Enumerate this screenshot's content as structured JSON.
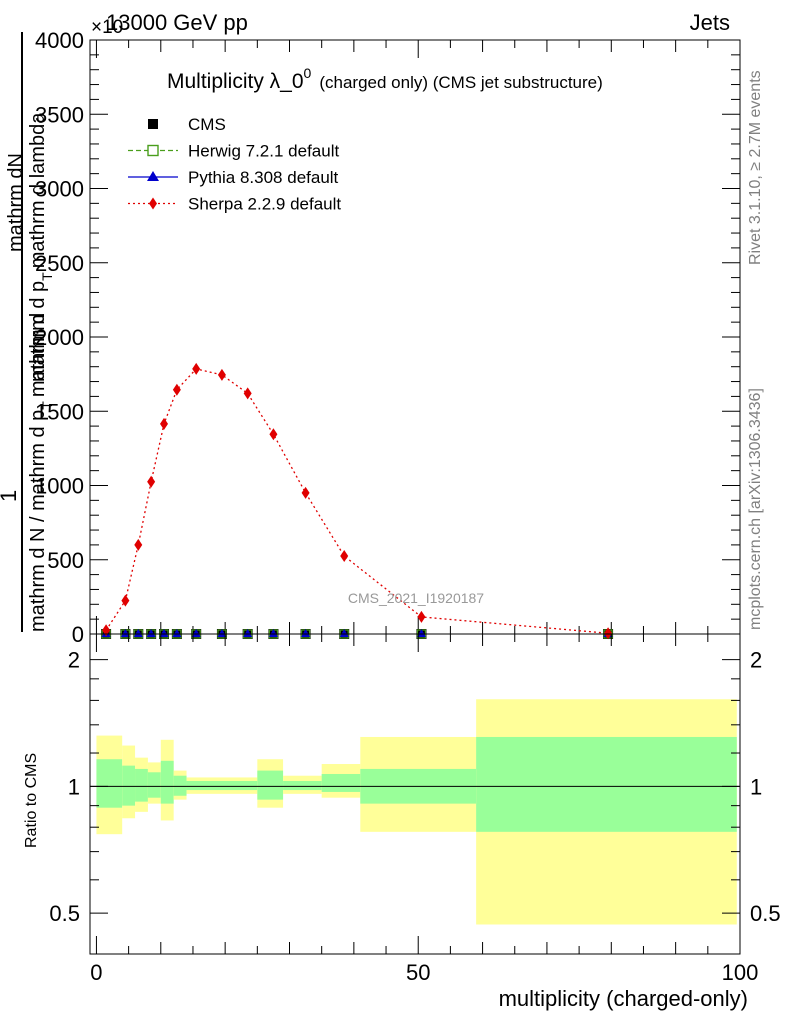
{
  "header": {
    "left": "13000 GeV pp",
    "right": "Jets",
    "multiplier": "×10"
  },
  "side_text": {
    "rivet": "Rivet 3.1.10, ≥ 2.7M events",
    "mcplots": "mcplots.cern.ch [arXiv:1306.3436]"
  },
  "watermark": "CMS_2021_I1920187",
  "chart_data": [
    {
      "type": "line",
      "title_main": "Multiplicity λ_0",
      "title_sup": "0",
      "title_suffix": "(charged only) (CMS jet substructure)",
      "ylabel_num": "1",
      "ylabel_mid": "mathrm d N / mathrm d p",
      "ylabel_sub1": "T",
      "ylabel_tail": "mathrm d",
      "ylabel_den": "mathrm dN",
      "ylabel_den2": "mathrm d p",
      "ylabel_sub2": "T",
      "ylabel_den3": "mathrm d lambda",
      "xlim": [
        -1,
        100
      ],
      "ylim": [
        0,
        4000
      ],
      "yticks": [
        0,
        500,
        1000,
        1500,
        2000,
        2500,
        3000,
        3500,
        4000
      ],
      "ytick_labels": [
        "0",
        "500",
        "1000",
        "1500",
        "2000",
        "2500",
        "3000",
        "3500",
        "4000"
      ],
      "legend": [
        {
          "name": "CMS",
          "color": "#000000",
          "marker": "square-filled",
          "line": "none"
        },
        {
          "name": "Herwig 7.2.1 default",
          "color": "#4a9e1c",
          "marker": "square-open",
          "line": "dashed"
        },
        {
          "name": "Pythia 8.308 default",
          "color": "#0000cc",
          "marker": "triangle",
          "line": "solid"
        },
        {
          "name": "Sherpa 2.2.9 default",
          "color": "#e00000",
          "marker": "diamond",
          "line": "dotted"
        }
      ],
      "series": [
        {
          "name": "CMS",
          "x": [
            1.5,
            4.5,
            6.5,
            8.5,
            10.5,
            12.5,
            15.5,
            19.5,
            23.5,
            27.5,
            32.5,
            38.5,
            50.5,
            79.5
          ],
          "y": [
            0,
            0,
            0,
            0,
            0,
            0,
            0,
            0,
            0,
            0,
            0,
            0,
            0,
            0
          ]
        },
        {
          "name": "Sherpa 2.2.9 default",
          "x": [
            1.5,
            4.5,
            6.5,
            8.5,
            10.5,
            12.5,
            15.5,
            19.5,
            23.5,
            27.5,
            32.5,
            38.5,
            50.5,
            79.5
          ],
          "y": [
            25,
            225,
            600,
            1025,
            1415,
            1645,
            1785,
            1745,
            1620,
            1345,
            950,
            525,
            115,
            5
          ]
        }
      ]
    },
    {
      "type": "area",
      "ylabel": "Ratio to CMS",
      "xlabel": "multiplicity (charged-only)",
      "xlim": [
        -1,
        100
      ],
      "ylim": [
        0.4,
        2.3
      ],
      "scale": "log",
      "yticks": [
        0.5,
        1,
        2
      ],
      "ytick_labels": [
        "0.5",
        "1",
        "2"
      ],
      "xticks": [
        0,
        50,
        100
      ],
      "xtick_labels": [
        "0",
        "50",
        "100"
      ],
      "bins": [
        {
          "lo": 0,
          "hi": 4,
          "inner": [
            0.89,
            1.16
          ],
          "outer": [
            0.77,
            1.32
          ]
        },
        {
          "lo": 4,
          "hi": 6,
          "inner": [
            0.9,
            1.12
          ],
          "outer": [
            0.84,
            1.25
          ]
        },
        {
          "lo": 6,
          "hi": 8,
          "inner": [
            0.92,
            1.1
          ],
          "outer": [
            0.87,
            1.17
          ]
        },
        {
          "lo": 8,
          "hi": 10,
          "inner": [
            0.94,
            1.08
          ],
          "outer": [
            0.91,
            1.14
          ]
        },
        {
          "lo": 10,
          "hi": 12,
          "inner": [
            0.91,
            1.15
          ],
          "outer": [
            0.83,
            1.29
          ]
        },
        {
          "lo": 12,
          "hi": 14,
          "inner": [
            0.95,
            1.06
          ],
          "outer": [
            0.93,
            1.09
          ]
        },
        {
          "lo": 14,
          "hi": 25,
          "inner": [
            0.98,
            1.03
          ],
          "outer": [
            0.96,
            1.05
          ]
        },
        {
          "lo": 25,
          "hi": 29,
          "inner": [
            0.93,
            1.09
          ],
          "outer": [
            0.89,
            1.16
          ]
        },
        {
          "lo": 29,
          "hi": 35,
          "inner": [
            0.98,
            1.03
          ],
          "outer": [
            0.96,
            1.06
          ]
        },
        {
          "lo": 35,
          "hi": 41,
          "inner": [
            0.97,
            1.07
          ],
          "outer": [
            0.94,
            1.13
          ]
        },
        {
          "lo": 41,
          "hi": 59,
          "inner": [
            0.91,
            1.1
          ],
          "outer": [
            0.78,
            1.31
          ]
        },
        {
          "lo": 59,
          "hi": 100,
          "inner": [
            0.78,
            1.31
          ],
          "outer": [
            0.47,
            1.61
          ]
        }
      ],
      "colors": {
        "inner": "#99ff99",
        "outer": "#ffff99"
      }
    }
  ]
}
